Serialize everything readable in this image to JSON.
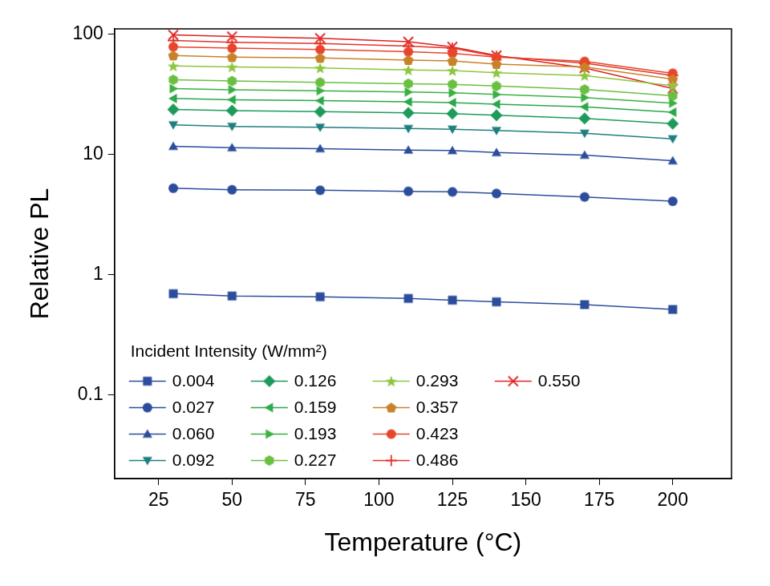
{
  "chart_data": {
    "type": "line",
    "x_label": "Temperature (°C)",
    "y_label": "Relative PL",
    "legend_title": "Incident Intensity (W/mm²)",
    "x": [
      30,
      50,
      80,
      110,
      125,
      140,
      170,
      200
    ],
    "series": [
      {
        "name": "0.004",
        "color": "#2c4d9c",
        "marker": "square",
        "values": [
          0.69,
          0.66,
          0.65,
          0.63,
          0.61,
          0.59,
          0.56,
          0.51
        ]
      },
      {
        "name": "0.027",
        "color": "#2c4d9c",
        "marker": "circle",
        "values": [
          5.2,
          5.05,
          5.0,
          4.9,
          4.85,
          4.7,
          4.4,
          4.05
        ]
      },
      {
        "name": "0.060",
        "color": "#2c4d9c",
        "marker": "triangle_up",
        "values": [
          11.6,
          11.3,
          11.1,
          10.8,
          10.7,
          10.3,
          9.8,
          8.8
        ]
      },
      {
        "name": "0.092",
        "color": "#1f7f7f",
        "marker": "triangle_down",
        "values": [
          17.5,
          17.0,
          16.7,
          16.3,
          16.1,
          15.7,
          14.9,
          13.4
        ]
      },
      {
        "name": "0.126",
        "color": "#1e9a5a",
        "marker": "diamond",
        "values": [
          23.5,
          23.0,
          22.5,
          22.0,
          21.7,
          21.0,
          19.8,
          17.9
        ]
      },
      {
        "name": "0.159",
        "color": "#2aa84a",
        "marker": "triangle_left",
        "values": [
          29,
          28.3,
          27.8,
          27.2,
          26.8,
          26.0,
          24.7,
          22.3
        ]
      },
      {
        "name": "0.193",
        "color": "#3cb043",
        "marker": "triangle_right",
        "values": [
          35,
          34.3,
          33.6,
          32.8,
          32.3,
          31.3,
          29.5,
          26.5
        ]
      },
      {
        "name": "0.227",
        "color": "#6abf40",
        "marker": "hexagon",
        "values": [
          41.5,
          40.5,
          39.5,
          38.5,
          38,
          36.8,
          34.5,
          30.5
        ]
      },
      {
        "name": "0.293",
        "color": "#8dc63f",
        "marker": "star",
        "values": [
          54,
          53,
          52,
          50,
          49.5,
          47.5,
          45,
          37
        ]
      },
      {
        "name": "0.357",
        "color": "#c8822a",
        "marker": "pentagon",
        "values": [
          66,
          64,
          63,
          60.5,
          59.5,
          56,
          53,
          42
        ]
      },
      {
        "name": "0.423",
        "color": "#e8452c",
        "marker": "circle",
        "values": [
          78,
          76,
          74,
          71,
          69,
          64,
          59,
          47
        ]
      },
      {
        "name": "0.486",
        "color": "#e0352b",
        "marker": "plus",
        "values": [
          88,
          85,
          83,
          79,
          76,
          65,
          57,
          45
        ]
      },
      {
        "name": "0.550",
        "color": "#e02020",
        "marker": "x",
        "values": [
          98,
          95,
          92,
          86,
          78,
          66,
          52,
          35
        ]
      }
    ],
    "xlim": [
      10,
      220
    ],
    "xticks": [
      25,
      50,
      75,
      100,
      125,
      150,
      175,
      200
    ],
    "ylim": [
      0.02,
      110
    ],
    "yticks": [
      0.1,
      1,
      10,
      100
    ],
    "log": "y",
    "grid": false,
    "legend": "lower left"
  }
}
